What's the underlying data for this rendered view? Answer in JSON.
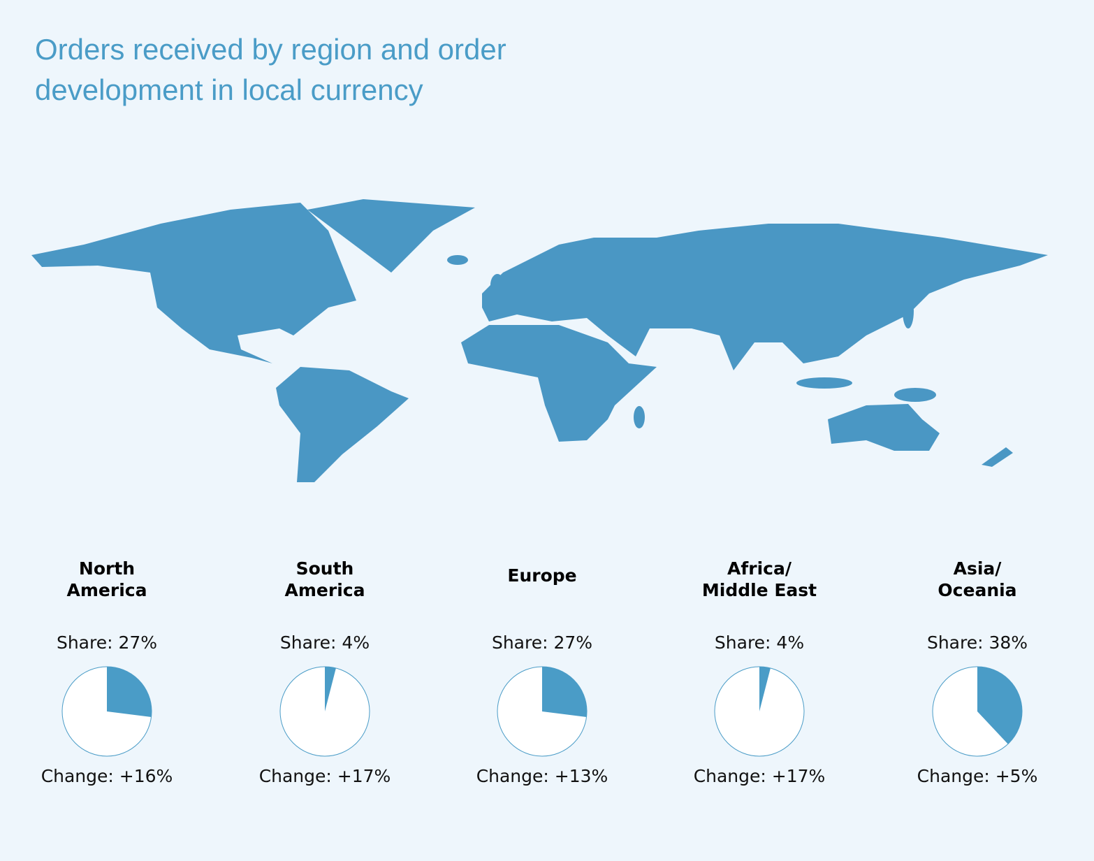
{
  "title": [
    "Orders received by region and order",
    "development in local currency"
  ],
  "chart_data": [
    {
      "type": "pie",
      "title": [
        "North",
        "America"
      ],
      "values": [
        27
      ],
      "value_labels": [
        "Share: 27%"
      ],
      "caption": "Change: +16%",
      "color": "#4a9cc7"
    },
    {
      "type": "pie",
      "title": [
        "South",
        "America"
      ],
      "values": [
        4
      ],
      "value_labels": [
        "Share: 4%"
      ],
      "caption": "Change: +17%",
      "color": "#4a9cc7"
    },
    {
      "type": "pie",
      "title": [
        "Europe"
      ],
      "values": [
        27
      ],
      "value_labels": [
        "Share: 27%"
      ],
      "caption": "Change: +13%",
      "color": "#4a9cc7"
    },
    {
      "type": "pie",
      "title": [
        "Africa/",
        "Middle East"
      ],
      "values": [
        4
      ],
      "value_labels": [
        "Share: 4%"
      ],
      "caption": "Change: +17%",
      "color": "#4a9cc7"
    },
    {
      "type": "pie",
      "title": [
        "Asia/",
        "Oceania"
      ],
      "values": [
        38
      ],
      "value_labels": [
        "Share: 38%"
      ],
      "caption": "Change: +5%",
      "color": "#4a9cc7"
    }
  ]
}
